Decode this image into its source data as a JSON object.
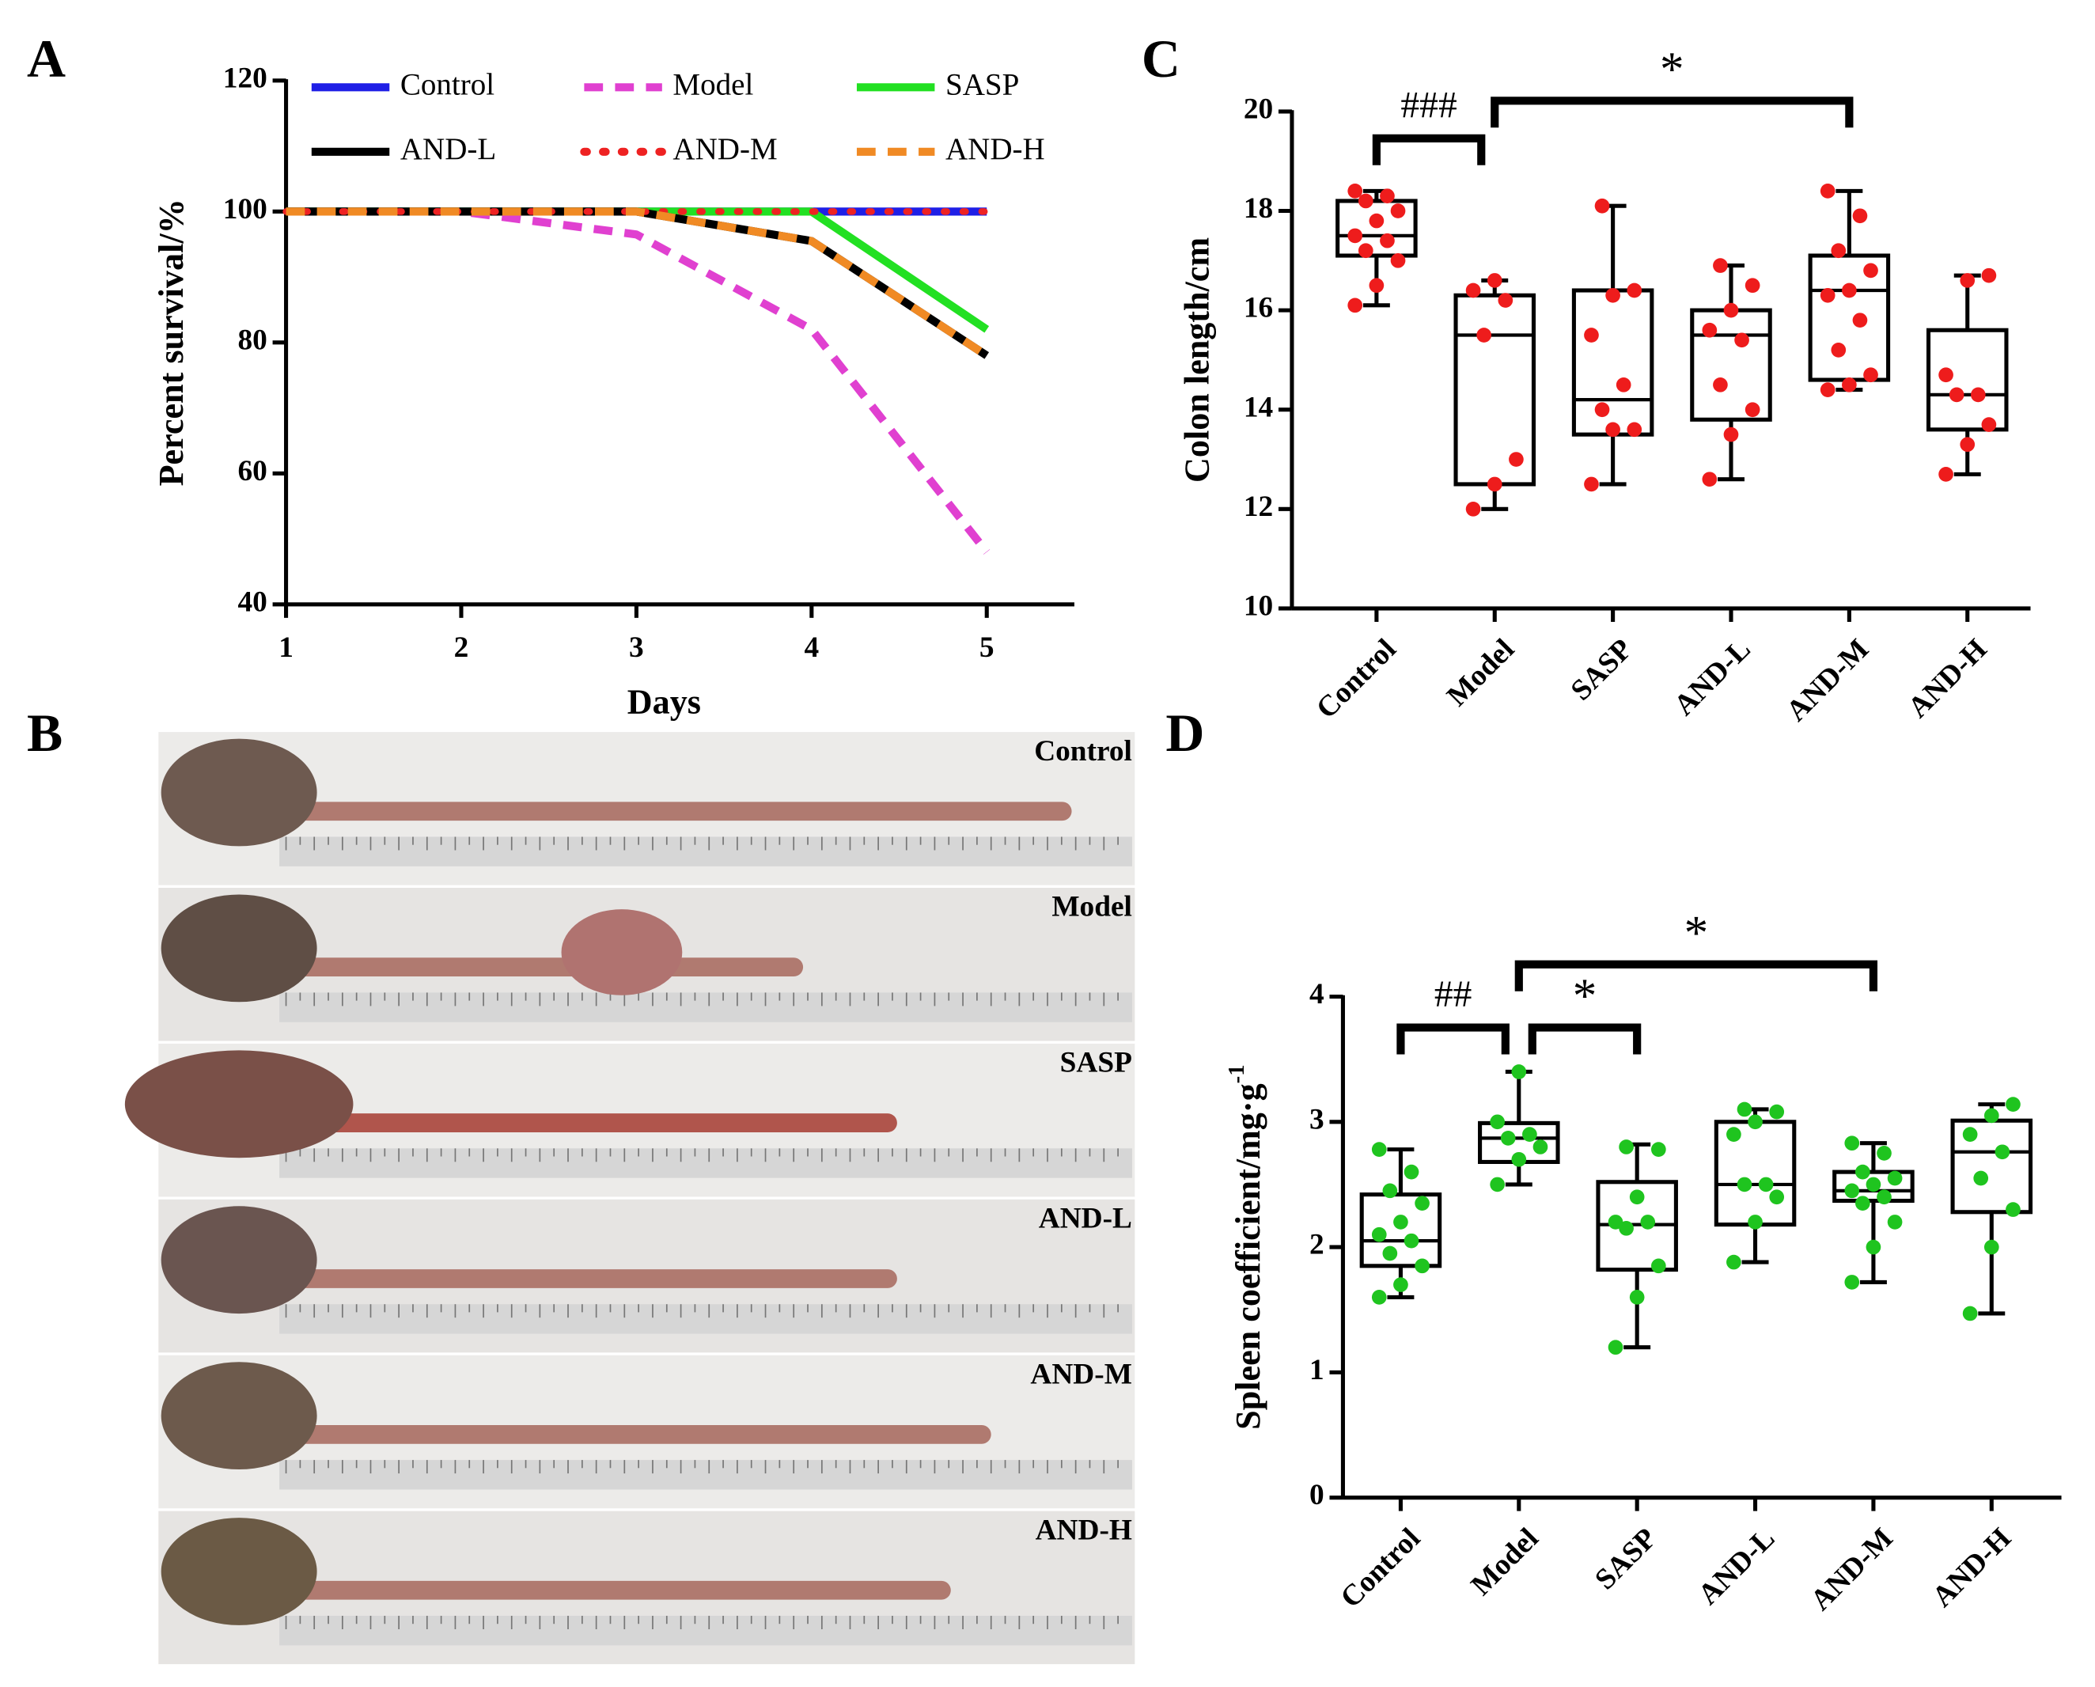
{
  "chart_data": [
    {
      "type": "line",
      "panel": "A",
      "xlabel": "Days",
      "ylabel": "Percent survival/%",
      "x": [
        1,
        2,
        3,
        4,
        5
      ],
      "xlim": [
        1,
        5.5
      ],
      "xticks": [
        1,
        2,
        3,
        4,
        5
      ],
      "ylim": [
        40,
        120
      ],
      "yticks": [
        40,
        60,
        80,
        100,
        120
      ],
      "series": [
        {
          "name": "Control",
          "color": "#1f1fe6",
          "dash": "solid",
          "values": [
            100,
            100,
            100,
            100,
            100
          ]
        },
        {
          "name": "Model",
          "color": "#e040d0",
          "dash": "dashed",
          "values": [
            100,
            100,
            96.5,
            82,
            48
          ]
        },
        {
          "name": "SASP",
          "color": "#22e022",
          "dash": "solid",
          "values": [
            100,
            100,
            100,
            100,
            82
          ]
        },
        {
          "name": "AND-L",
          "color": "#000000",
          "dash": "solid",
          "values": [
            100,
            100,
            100,
            95.5,
            78
          ]
        },
        {
          "name": "AND-M",
          "color": "#ee2222",
          "dash": "dotted",
          "values": [
            100,
            100,
            100,
            100,
            100
          ]
        },
        {
          "name": "AND-H",
          "color": "#f08a24",
          "dash": "dashed",
          "values": [
            100,
            100,
            100,
            95.5,
            78
          ]
        }
      ]
    },
    {
      "type": "box",
      "panel": "C",
      "ylabel": "Colon length/cm",
      "point_color": "#ee1c1c",
      "categories": [
        "Control",
        "Model",
        "SASP",
        "AND-L",
        "AND-M",
        "AND-H"
      ],
      "ylim": [
        10,
        20
      ],
      "yticks": [
        10,
        12,
        14,
        16,
        18,
        20
      ],
      "boxes": [
        {
          "min": 16.1,
          "q1": 17.1,
          "median": 17.5,
          "q3": 18.2,
          "max": 18.4,
          "points": [
            16.1,
            16.5,
            17.0,
            17.2,
            17.4,
            17.5,
            17.8,
            18.0,
            18.2,
            18.3,
            18.4
          ]
        },
        {
          "min": 12.0,
          "q1": 12.5,
          "median": 15.5,
          "q3": 16.3,
          "max": 16.6,
          "points": [
            12.0,
            12.5,
            13.0,
            15.5,
            16.2,
            16.4,
            16.6
          ]
        },
        {
          "min": 12.5,
          "q1": 13.5,
          "median": 14.2,
          "q3": 16.4,
          "max": 18.1,
          "points": [
            12.5,
            13.6,
            13.6,
            14.0,
            14.5,
            15.5,
            16.3,
            16.4,
            18.1
          ]
        },
        {
          "min": 12.6,
          "q1": 13.8,
          "median": 15.5,
          "q3": 16.0,
          "max": 16.9,
          "points": [
            12.6,
            13.5,
            14.0,
            14.5,
            15.4,
            15.6,
            16.0,
            16.5,
            16.9
          ]
        },
        {
          "min": 14.4,
          "q1": 14.6,
          "median": 16.4,
          "q3": 17.1,
          "max": 18.4,
          "points": [
            14.4,
            14.5,
            14.7,
            15.2,
            15.8,
            16.3,
            16.4,
            16.8,
            17.2,
            17.9,
            18.4
          ]
        },
        {
          "min": 12.7,
          "q1": 13.6,
          "median": 14.3,
          "q3": 15.6,
          "max": 16.7,
          "points": [
            12.7,
            13.3,
            13.7,
            14.3,
            14.3,
            14.7,
            16.6,
            16.7
          ]
        }
      ],
      "annotations": [
        {
          "text": "###",
          "groups": [
            "Control",
            "Model"
          ]
        },
        {
          "text": "*",
          "groups": [
            "Model",
            "AND-M"
          ]
        }
      ]
    },
    {
      "type": "box",
      "panel": "D",
      "ylabel": "Spleen coefficient/mg·g",
      "ylabel_sup": "-1",
      "point_color": "#1fc41f",
      "categories": [
        "Control",
        "Model",
        "SASP",
        "AND-L",
        "AND-M",
        "AND-H"
      ],
      "ylim": [
        0,
        4
      ],
      "yticks": [
        0,
        1,
        2,
        3,
        4
      ],
      "boxes": [
        {
          "min": 1.6,
          "q1": 1.85,
          "median": 2.05,
          "q3": 2.42,
          "max": 2.78,
          "points": [
            1.6,
            1.7,
            1.85,
            1.95,
            2.05,
            2.1,
            2.2,
            2.35,
            2.45,
            2.6,
            2.78
          ]
        },
        {
          "min": 2.5,
          "q1": 2.68,
          "median": 2.87,
          "q3": 2.99,
          "max": 3.4,
          "points": [
            2.5,
            2.7,
            2.8,
            2.87,
            2.9,
            3.0,
            3.4
          ]
        },
        {
          "min": 1.2,
          "q1": 1.82,
          "median": 2.18,
          "q3": 2.52,
          "max": 2.82,
          "points": [
            1.2,
            1.6,
            1.85,
            2.15,
            2.2,
            2.2,
            2.4,
            2.78,
            2.8
          ]
        },
        {
          "min": 1.88,
          "q1": 2.18,
          "median": 2.5,
          "q3": 3.0,
          "max": 3.1,
          "points": [
            1.88,
            2.2,
            2.4,
            2.5,
            2.5,
            2.9,
            3.0,
            3.08,
            3.1
          ]
        },
        {
          "min": 1.72,
          "q1": 2.37,
          "median": 2.45,
          "q3": 2.6,
          "max": 2.83,
          "points": [
            1.72,
            2.0,
            2.2,
            2.35,
            2.4,
            2.45,
            2.5,
            2.55,
            2.6,
            2.75,
            2.83
          ]
        },
        {
          "min": 1.47,
          "q1": 2.28,
          "median": 2.76,
          "q3": 3.01,
          "max": 3.14,
          "points": [
            1.47,
            2.0,
            2.3,
            2.55,
            2.76,
            2.9,
            3.05,
            3.14
          ]
        }
      ],
      "annotations": [
        {
          "text": "##",
          "groups": [
            "Control",
            "Model"
          ]
        },
        {
          "text": "*",
          "groups": [
            "Model",
            "SASP"
          ]
        },
        {
          "text": "*",
          "groups": [
            "Model",
            "AND-M"
          ]
        }
      ]
    }
  ],
  "photo": {
    "panel": "B",
    "strips": [
      "Control",
      "Model",
      "SASP",
      "AND-L",
      "AND-M",
      "AND-H"
    ]
  }
}
